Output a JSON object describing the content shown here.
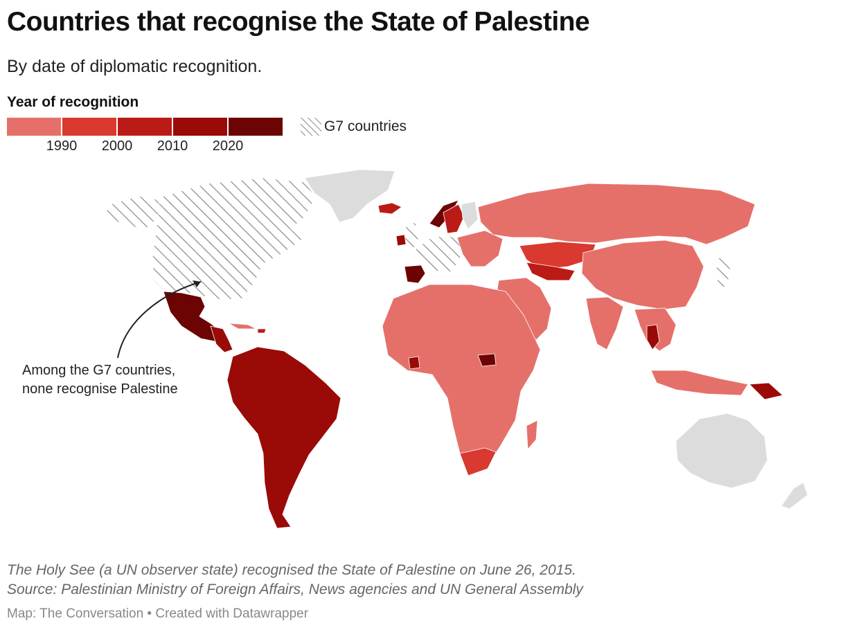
{
  "title": "Countries that recognise the State of Palestine",
  "subtitle": "By date of diplomatic recognition.",
  "legend": {
    "title": "Year of recognition",
    "colors": [
      "#e5706a",
      "#d9392f",
      "#bb1b17",
      "#9a0a07",
      "#6b0402"
    ],
    "ticks": [
      "1990",
      "2000",
      "2010",
      "2020"
    ],
    "g7_label": "G7 countries"
  },
  "map_colors": {
    "no_data": "#dcdcdc",
    "g7_hatch": "#888888",
    "border": "#ffffff"
  },
  "annotation": {
    "line1": "Among the G7 countries,",
    "line2": "none recognise Palestine"
  },
  "notes": {
    "line1": "The Holy See (a UN observer state) recognised the State of Palestine on June 26, 2015.",
    "line2": "Source: Palestinian Ministry of Foreign Affairs, News agencies and UN General Assembly"
  },
  "credit": "Map: The Conversation • Created with Datawrapper"
}
